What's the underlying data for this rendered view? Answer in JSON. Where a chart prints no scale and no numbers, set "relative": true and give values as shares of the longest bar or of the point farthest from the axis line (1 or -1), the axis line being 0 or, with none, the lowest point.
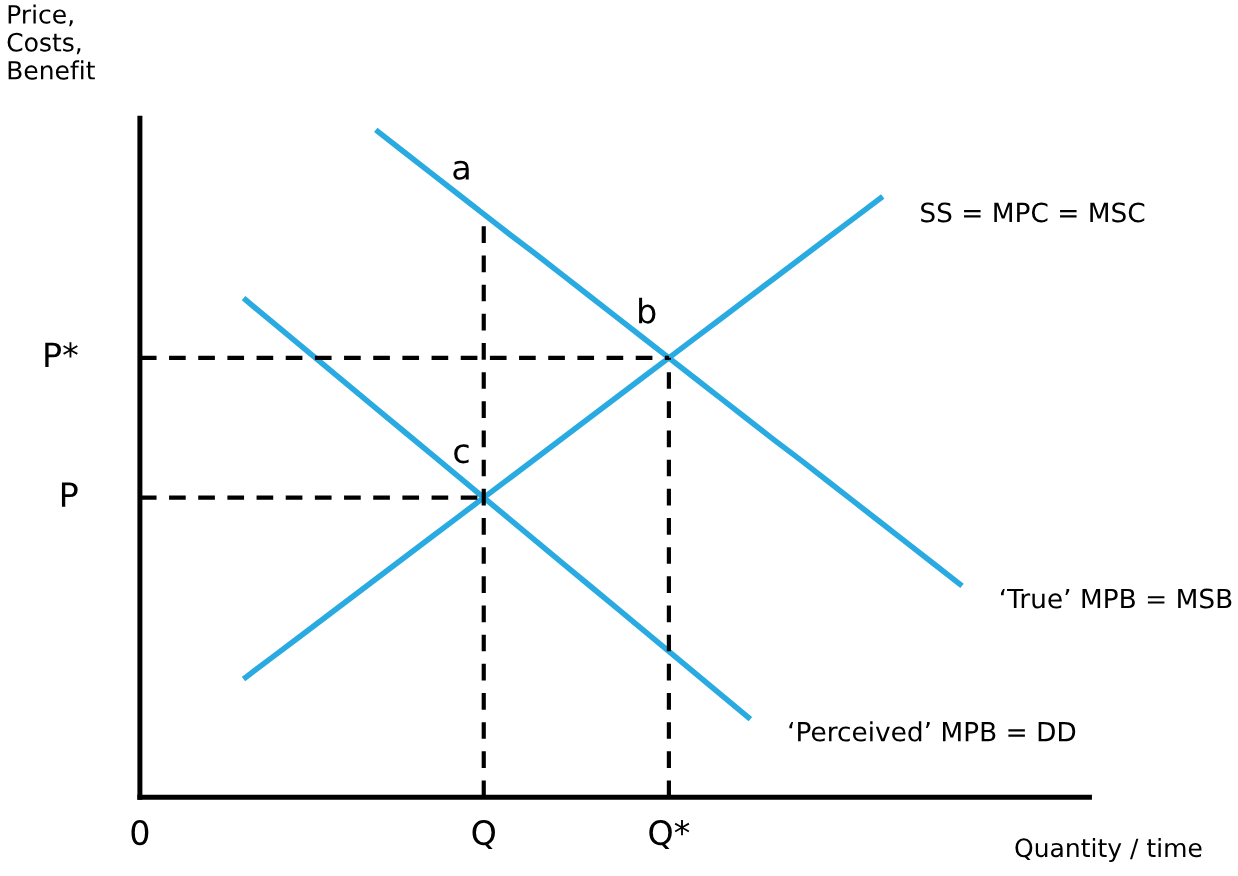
{
  "chart_data": {
    "type": "line",
    "relative": true,
    "xlabel": "Quantity / time",
    "ylabel": "Price,\nCosts,\nBenefit",
    "categories": [
      "0",
      null,
      null,
      null,
      null,
      null,
      null,
      null,
      null,
      null,
      null,
      null,
      null,
      "Q",
      null,
      null,
      null,
      null,
      null,
      null,
      "Q*",
      null,
      null,
      null,
      null,
      null,
      null,
      null,
      null,
      null,
      null,
      null,
      null,
      null,
      null,
      null
    ],
    "series": [
      {
        "name": "SS = MPC = MSC",
        "color": "#29abe2",
        "values": [
          null,
          null,
          null,
          null,
          0.18,
          0.21,
          0.24,
          0.27,
          0.3,
          0.33,
          0.36,
          0.39,
          0.42,
          0.45,
          0.48,
          0.51,
          0.54,
          0.57,
          0.6,
          0.63,
          0.66,
          0.69,
          0.72,
          0.75,
          0.78,
          0.81,
          0.84,
          0.87,
          0.9,
          null,
          null,
          null,
          null,
          null,
          null,
          null
        ]
      },
      {
        "name": "‘True’ MPB = MSB",
        "color": "#29abe2",
        "values": [
          null,
          null,
          null,
          null,
          null,
          null,
          null,
          null,
          null,
          1.0,
          0.969,
          0.938,
          0.907,
          0.876,
          0.845,
          0.815,
          0.784,
          0.753,
          0.722,
          0.691,
          0.66,
          0.629,
          0.598,
          0.567,
          0.536,
          0.506,
          0.475,
          0.444,
          0.413,
          0.382,
          0.351,
          0.32,
          null,
          null,
          null,
          null
        ]
      },
      {
        "name": "‘Perceived’ MPB = DD",
        "color": "#29abe2",
        "values": [
          null,
          null,
          null,
          null,
          0.747,
          0.714,
          0.681,
          0.648,
          0.615,
          0.582,
          0.549,
          0.516,
          0.483,
          0.45,
          0.417,
          0.384,
          0.351,
          0.318,
          0.285,
          0.252,
          0.219,
          0.186,
          0.153,
          0.12,
          null,
          null,
          null,
          null,
          null,
          null,
          null,
          null,
          null,
          null,
          null,
          null
        ]
      },
      {
        "color": "#000000",
        "line_style": "dashed",
        "values": [
          0.66,
          0.66,
          0.66,
          0.66,
          0.66,
          0.66,
          0.66,
          0.66,
          0.66,
          0.66,
          0.66,
          0.66,
          0.66,
          0.66,
          0.66,
          0.66,
          0.66,
          0.66,
          0.66,
          0.66,
          0.66,
          null,
          null,
          null,
          null,
          null,
          null,
          null,
          null,
          null,
          null,
          null,
          null,
          null,
          null,
          null
        ]
      },
      {
        "color": "#000000",
        "line_style": "dashed",
        "values": [
          0.45,
          0.45,
          0.45,
          0.45,
          0.45,
          0.45,
          0.45,
          0.45,
          0.45,
          0.45,
          0.45,
          0.45,
          0.45,
          0.45,
          null,
          null,
          null,
          null,
          null,
          null,
          null,
          null,
          null,
          null,
          null,
          null,
          null,
          null,
          null,
          null,
          null,
          null,
          null,
          null,
          null,
          null
        ]
      }
    ],
    "ref_lines": [
      {
        "axis": "x",
        "value": "Q",
        "color": "#000000",
        "line_style": "dashed"
      },
      {
        "axis": "x",
        "value": "Q*",
        "color": "#000000",
        "line_style": "dashed"
      }
    ],
    "annotations": [
      {
        "text": "a",
        "x": "Q",
        "y": 0.876
      },
      {
        "text": "b",
        "x": "Q*",
        "y": 0.66
      },
      {
        "text": "c",
        "x": "Q",
        "y": 0.45
      },
      "P*",
      "P"
    ],
    "legend": false,
    "marker": "none"
  }
}
